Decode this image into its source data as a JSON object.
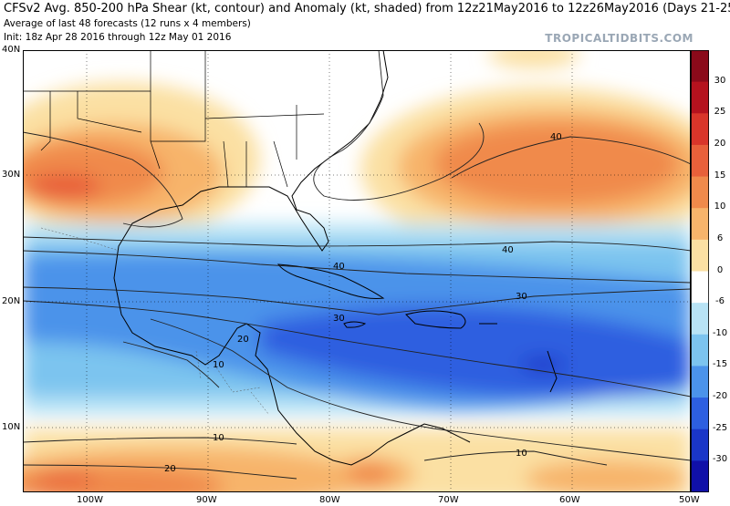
{
  "header": {
    "title": "CFSv2 Avg. 850-200 hPa Shear (kt, contour) and Anomaly (kt, shaded) from 12z21May2016 to 12z26May2016 (Days 21-25)",
    "line2": "Average of last 48 forecasts (12 runs x 4 members)",
    "line3": "Init: 18z Apr 28 2016 through 12z May 01 2016",
    "brand": "TROPICALTIDBITS.COM"
  },
  "axes": {
    "lat_labels": [
      "40N",
      "30N",
      "20N",
      "10N"
    ],
    "lon_labels": [
      "100W",
      "90W",
      "80W",
      "70W",
      "60W",
      "50W"
    ]
  },
  "colorbar": {
    "labels": [
      "30",
      "25",
      "20",
      "15",
      "10",
      "6",
      "0",
      "-6",
      "-10",
      "-15",
      "-20",
      "-25",
      "-30"
    ],
    "colors": [
      "#8b0a1a",
      "#b5121e",
      "#d9352a",
      "#e8603a",
      "#f08a4b",
      "#f7b46b",
      "#fbe0a3",
      "#ffffff",
      "#b8e3f5",
      "#7cc4ef",
      "#4b93ea",
      "#2d5fe0",
      "#1a36c8",
      "#1010a8"
    ]
  },
  "contour_labels": [
    "40",
    "40",
    "40",
    "30",
    "30",
    "20",
    "10",
    "10",
    "10",
    "20"
  ]
}
